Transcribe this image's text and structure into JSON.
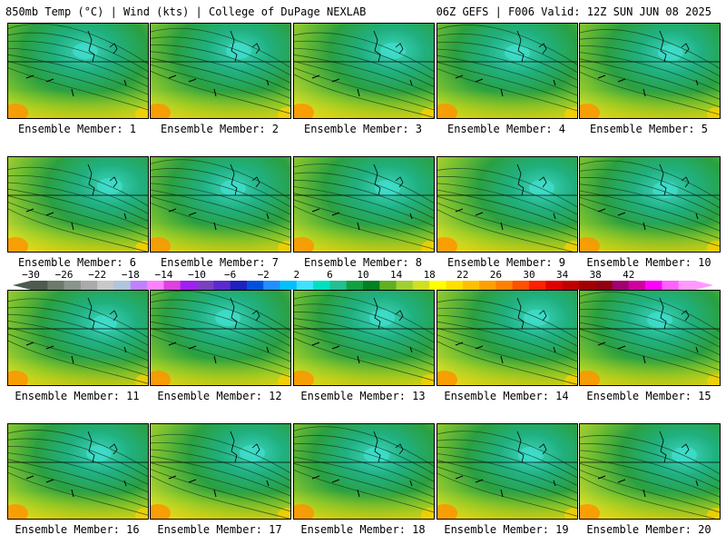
{
  "header": {
    "title": "850mb Temp (°C) | Wind (kts) | College of DuPage NEXLAB",
    "run_info": "06Z GEFS | F006 Valid: 12Z SUN JUN 08 2025"
  },
  "members": [
    {
      "label": "Ensemble Member: 1"
    },
    {
      "label": "Ensemble Member: 2"
    },
    {
      "label": "Ensemble Member: 3"
    },
    {
      "label": "Ensemble Member: 4"
    },
    {
      "label": "Ensemble Member: 5"
    },
    {
      "label": "Ensemble Member: 6"
    },
    {
      "label": "Ensemble Member: 7"
    },
    {
      "label": "Ensemble Member: 8"
    },
    {
      "label": "Ensemble Member: 9"
    },
    {
      "label": "Ensemble Member: 10"
    },
    {
      "label": "Ensemble Member: 11"
    },
    {
      "label": "Ensemble Member: 12"
    },
    {
      "label": "Ensemble Member: 13"
    },
    {
      "label": "Ensemble Member: 14"
    },
    {
      "label": "Ensemble Member: 15"
    },
    {
      "label": "Ensemble Member: 16"
    },
    {
      "label": "Ensemble Member: 17"
    },
    {
      "label": "Ensemble Member: 18"
    },
    {
      "label": "Ensemble Member: 19"
    },
    {
      "label": "Ensemble Member: 20"
    }
  ],
  "colorbar": {
    "ticks": [
      "−30",
      "−26",
      "−22",
      "−18",
      "−14",
      "−10",
      "−6",
      "−2",
      "2",
      "6",
      "10",
      "14",
      "18",
      "22",
      "26",
      "30",
      "34",
      "38",
      "42"
    ],
    "colors": [
      "#4d5a4d",
      "#6b7a6b",
      "#8a948a",
      "#a9aba9",
      "#c8c8c8",
      "#b0c4de",
      "#c080ff",
      "#ff80ff",
      "#e040e0",
      "#a020f0",
      "#7b3fc0",
      "#5a2ad0",
      "#2020c0",
      "#0050e0",
      "#1e90ff",
      "#00bfff",
      "#40e0ff",
      "#00e0c0",
      "#20c090",
      "#10a040",
      "#008020",
      "#60b020",
      "#a0d030",
      "#d0e020",
      "#ffff00",
      "#ffe000",
      "#ffc000",
      "#ffa000",
      "#ff8000",
      "#ff5000",
      "#ff2000",
      "#e00000",
      "#c00000",
      "#a00000",
      "#900010",
      "#a00070",
      "#d000a0",
      "#ff00ff",
      "#ff60ff",
      "#ff99ff"
    ]
  }
}
